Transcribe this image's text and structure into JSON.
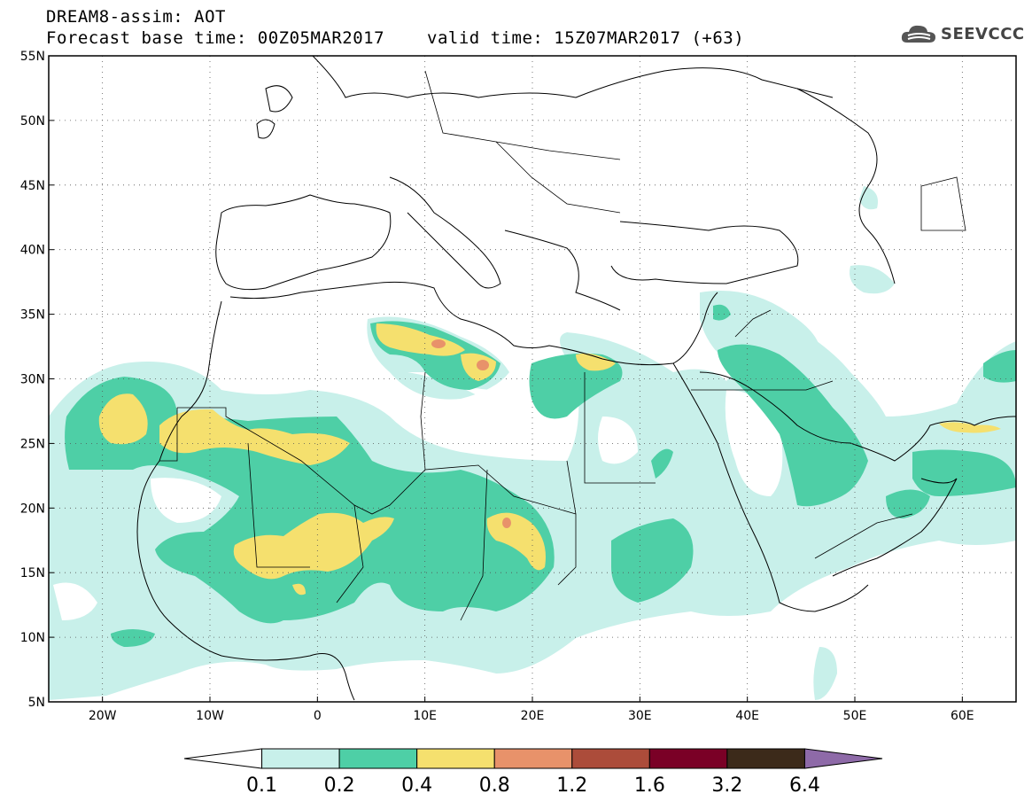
{
  "title": {
    "line1": "DREAM8-assim: AOT",
    "base": "Forecast base time: 00Z05MAR2017",
    "valid": "valid time: 15Z07MAR2017 (+63)"
  },
  "logo": {
    "text": "SEEVCCC"
  },
  "axes": {
    "lon_range": [
      -25,
      65
    ],
    "lat_range": [
      5,
      55
    ],
    "lat_ticks": [
      "55N",
      "50N",
      "45N",
      "40N",
      "35N",
      "30N",
      "25N",
      "20N",
      "15N",
      "10N",
      "5N"
    ],
    "lon_ticks": [
      "20W",
      "10W",
      "0",
      "10E",
      "20E",
      "30E",
      "40E",
      "50E",
      "60E"
    ],
    "grid": "dotted"
  },
  "colorbar": {
    "labels": [
      "0.1",
      "0.2",
      "0.4",
      "0.8",
      "1.2",
      "1.6",
      "3.2",
      "6.4"
    ],
    "colors": [
      "#ffffff",
      "#c8f0ea",
      "#4ecfa6",
      "#f5e06e",
      "#e8926a",
      "#ac4c3a",
      "#7a0026",
      "#3c2a1a",
      "#8e6aa8"
    ]
  },
  "colors": {
    "aot_0_1_0_2": "#c8f0ea",
    "aot_0_2_0_4": "#4ecfa6",
    "aot_0_4_0_8": "#f5e06e",
    "aot_0_8_1_2": "#e8926a"
  }
}
